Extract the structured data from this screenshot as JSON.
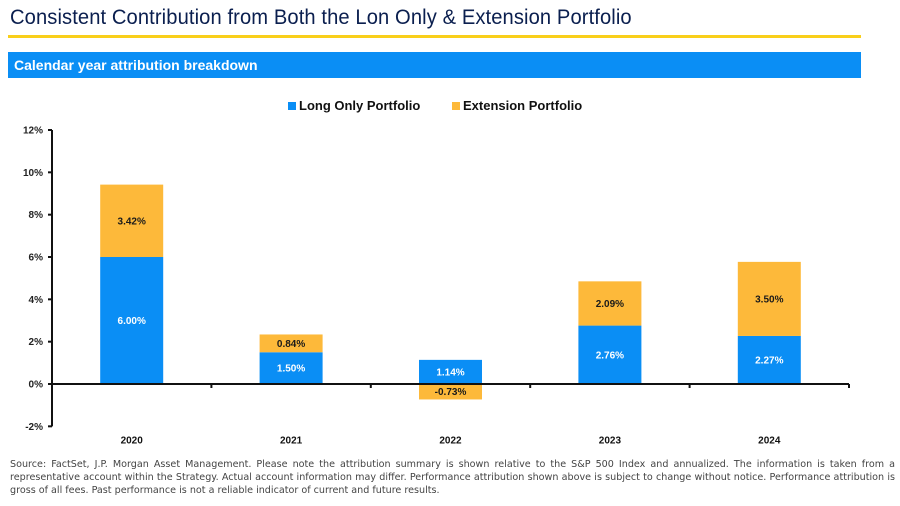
{
  "header": {
    "title": "Consistent Contribution from Both the Lon Only & Extension Portfolio",
    "section_label": "Calendar year attribution breakdown"
  },
  "colors": {
    "title": "#0b1f4f",
    "rule": "#f9cf1a",
    "section_bar": "#0a8ef5",
    "long_only": "#0a8ef5",
    "extension": "#fdb93a"
  },
  "chart_data": {
    "type": "bar",
    "stacked": true,
    "title": "Calendar year attribution breakdown",
    "xlabel": "",
    "ylabel": "",
    "categories": [
      "2020",
      "2021",
      "2022",
      "2023",
      "2024"
    ],
    "series": [
      {
        "name": "Long Only Portfolio",
        "color": "#0a8ef5",
        "values": [
          6.0,
          1.5,
          1.14,
          2.76,
          2.27
        ],
        "labels": [
          "6.00%",
          "1.50%",
          "1.14%",
          "2.76%",
          "2.27%"
        ],
        "label_color": "#ffffff"
      },
      {
        "name": "Extension Portfolio",
        "color": "#fdb93a",
        "values": [
          3.42,
          0.84,
          -0.73,
          2.09,
          3.5
        ],
        "labels": [
          "3.42%",
          "0.84%",
          "-0.73%",
          "2.09%",
          "3.50%"
        ],
        "label_color": "#1a1a1a"
      }
    ],
    "ylim": [
      -2,
      12
    ],
    "yticks": [
      -2,
      0,
      2,
      4,
      6,
      8,
      10,
      12
    ],
    "ytick_labels": [
      "-2%",
      "0%",
      "2%",
      "4%",
      "6%",
      "8%",
      "10%",
      "12%"
    ],
    "grid": false,
    "legend_position": "top-center"
  },
  "footnote": "Source: FactSet, J.P. Morgan Asset Management. Please note the attribution summary is shown relative to the S&P 500 Index and annualized. The information is taken from a representative account within the Strategy. Actual account information may differ. Performance attribution shown above is subject to change without notice. Performance attribution is gross of all fees. Past performance is not a reliable indicator of current and future results."
}
